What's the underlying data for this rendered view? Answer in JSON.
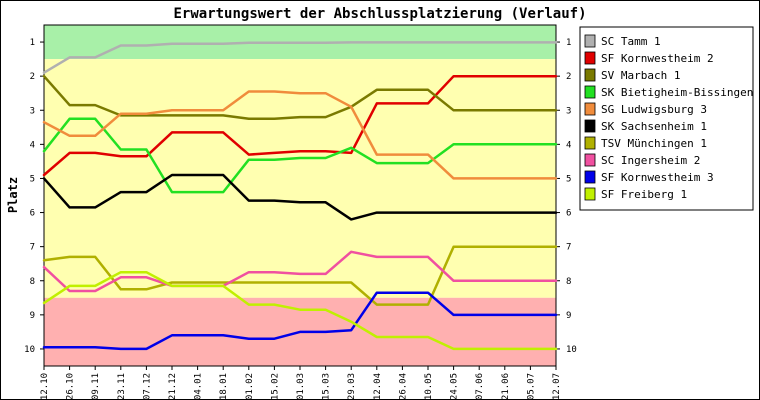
{
  "chart_data": {
    "type": "line",
    "title": "Erwartungswert der Abschlussplatzierung (Verlauf)",
    "ylabel": "Platz",
    "xlabel": "",
    "ylim": [
      1,
      10
    ],
    "y_inverted": true,
    "y_ticks": [
      1,
      2,
      3,
      4,
      5,
      6,
      7,
      8,
      9,
      10
    ],
    "x": [
      "12.10",
      "26.10",
      "09.11",
      "23.11",
      "07.12",
      "21.12",
      "04.01",
      "18.01",
      "01.02",
      "15.02",
      "01.03",
      "15.03",
      "29.03",
      "12.04",
      "26.04",
      "10.05",
      "24.05",
      "07.06",
      "21.06",
      "05.07",
      "12.07"
    ],
    "zones": [
      {
        "from": 0.5,
        "to": 1.5,
        "color": "#a8f0a8"
      },
      {
        "from": 1.5,
        "to": 8.5,
        "color": "#ffffb0"
      },
      {
        "from": 8.5,
        "to": 10.5,
        "color": "#ffb0b0"
      }
    ],
    "grid": false,
    "legend_position": "right",
    "series": [
      {
        "name": "SC Tamm 1",
        "color": "#b0b0b0",
        "values": [
          1.9,
          1.45,
          1.45,
          1.1,
          1.1,
          1.05,
          1.05,
          1.05,
          1.02,
          1.02,
          1.02,
          1.02,
          1.01,
          1.01,
          1.01,
          1.01,
          1.01,
          1.01,
          1.01,
          1.01,
          1.01
        ]
      },
      {
        "name": "SF Kornwestheim 2",
        "color": "#e00000",
        "values": [
          4.9,
          4.25,
          4.25,
          4.35,
          4.35,
          3.65,
          3.65,
          3.65,
          4.3,
          4.25,
          4.2,
          4.2,
          4.25,
          2.8,
          2.8,
          2.8,
          2.0,
          2.0,
          2.0,
          2.0,
          2.0
        ]
      },
      {
        "name": "SV Marbach 1",
        "color": "#7a7a00",
        "values": [
          2.0,
          2.85,
          2.85,
          3.15,
          3.15,
          3.15,
          3.15,
          3.15,
          3.25,
          3.25,
          3.2,
          3.2,
          2.9,
          2.4,
          2.4,
          2.4,
          3.0,
          3.0,
          3.0,
          3.0,
          3.0
        ]
      },
      {
        "name": "SK Bietigheim-Bissingen 1",
        "color": "#22e022",
        "values": [
          4.2,
          3.25,
          3.25,
          4.15,
          4.15,
          5.4,
          5.4,
          5.4,
          4.45,
          4.45,
          4.4,
          4.4,
          4.1,
          4.55,
          4.55,
          4.55,
          4.0,
          4.0,
          4.0,
          4.0,
          4.0
        ]
      },
      {
        "name": "SG Ludwigsburg 3",
        "color": "#f08c3c",
        "values": [
          3.35,
          3.75,
          3.75,
          3.1,
          3.1,
          3.0,
          3.0,
          3.0,
          2.45,
          2.45,
          2.5,
          2.5,
          2.9,
          4.3,
          4.3,
          4.3,
          5.0,
          5.0,
          5.0,
          5.0,
          5.0
        ]
      },
      {
        "name": "SK Sachsenheim 1",
        "color": "#000000",
        "values": [
          5.0,
          5.85,
          5.85,
          5.4,
          5.4,
          4.9,
          4.9,
          4.9,
          5.65,
          5.65,
          5.7,
          5.7,
          6.2,
          6.0,
          6.0,
          6.0,
          6.0,
          6.0,
          6.0,
          6.0,
          6.0
        ]
      },
      {
        "name": "TSV Münchingen 1",
        "color": "#b0b000",
        "values": [
          7.4,
          7.3,
          7.3,
          8.25,
          8.25,
          8.05,
          8.05,
          8.05,
          8.05,
          8.05,
          8.05,
          8.05,
          8.05,
          8.7,
          8.7,
          8.7,
          7.0,
          7.0,
          7.0,
          7.0,
          7.0
        ]
      },
      {
        "name": "SC Ingersheim 2",
        "color": "#f050a0",
        "values": [
          7.6,
          8.3,
          8.3,
          7.9,
          7.9,
          8.15,
          8.15,
          8.15,
          7.75,
          7.75,
          7.8,
          7.8,
          7.15,
          7.3,
          7.3,
          7.3,
          8.0,
          8.0,
          8.0,
          8.0,
          8.0
        ]
      },
      {
        "name": "SF Kornwestheim 3",
        "color": "#0000e8",
        "values": [
          9.95,
          9.95,
          9.95,
          10.0,
          10.0,
          9.6,
          9.6,
          9.6,
          9.7,
          9.7,
          9.5,
          9.5,
          9.45,
          8.35,
          8.35,
          8.35,
          9.0,
          9.0,
          9.0,
          9.0,
          9.0
        ]
      },
      {
        "name": "SF Freiberg 1",
        "color": "#c0f000",
        "values": [
          8.65,
          8.15,
          8.15,
          7.75,
          7.75,
          8.15,
          8.15,
          8.15,
          8.7,
          8.7,
          8.85,
          8.85,
          9.2,
          9.65,
          9.65,
          9.65,
          10.0,
          10.0,
          10.0,
          10.0,
          10.0
        ]
      }
    ]
  }
}
